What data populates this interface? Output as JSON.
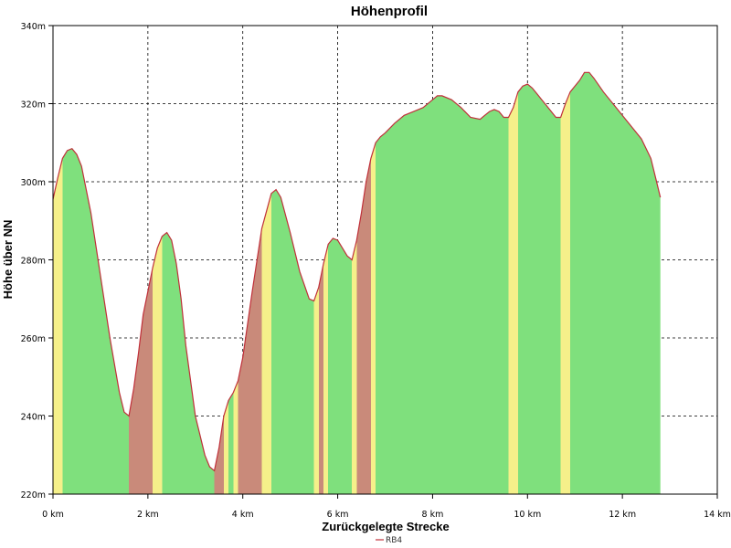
{
  "chart_data": {
    "type": "area",
    "title": "Höhenprofil",
    "xlabel": "Zurückgelegte Strecke",
    "ylabel": "Höhe über NN",
    "xlim": [
      0,
      14
    ],
    "ylim": [
      220,
      340
    ],
    "x_ticks": [
      0,
      2,
      4,
      6,
      8,
      10,
      12,
      14
    ],
    "x_tick_labels": [
      "0 km",
      "2 km",
      "4 km",
      "6 km",
      "8 km",
      "10 km",
      "12 km",
      "14 km"
    ],
    "y_ticks": [
      220,
      240,
      260,
      280,
      300,
      320,
      340
    ],
    "y_tick_labels": [
      "220m",
      "240m",
      "260m",
      "280m",
      "300m",
      "320m",
      "340m"
    ],
    "grid": true,
    "legend_position": "bottom-center",
    "series": [
      {
        "name": "RB4",
        "line_color": "#c0303a",
        "x": [
          0,
          0.1,
          0.2,
          0.3,
          0.4,
          0.5,
          0.6,
          0.8,
          1.0,
          1.2,
          1.4,
          1.5,
          1.6,
          1.7,
          1.8,
          1.9,
          2.0,
          2.1,
          2.2,
          2.3,
          2.4,
          2.5,
          2.6,
          2.7,
          2.8,
          3.0,
          3.2,
          3.3,
          3.4,
          3.5,
          3.6,
          3.7,
          3.8,
          3.9,
          4.0,
          4.2,
          4.4,
          4.6,
          4.7,
          4.8,
          5.0,
          5.2,
          5.4,
          5.5,
          5.6,
          5.7,
          5.8,
          5.9,
          6.0,
          6.2,
          6.3,
          6.4,
          6.5,
          6.6,
          6.7,
          6.8,
          6.9,
          7.0,
          7.2,
          7.4,
          7.6,
          7.8,
          8.0,
          8.1,
          8.2,
          8.4,
          8.6,
          8.8,
          9.0,
          9.1,
          9.2,
          9.3,
          9.4,
          9.5,
          9.6,
          9.7,
          9.8,
          9.9,
          10.0,
          10.1,
          10.2,
          10.3,
          10.4,
          10.5,
          10.6,
          10.7,
          10.8,
          10.9,
          11.0,
          11.1,
          11.2,
          11.3,
          11.4,
          11.6,
          11.8,
          12.0,
          12.2,
          12.4,
          12.6,
          12.7,
          12.8
        ],
        "y": [
          295.5,
          301,
          306,
          308,
          308.5,
          307,
          304,
          292,
          276,
          260,
          246,
          241,
          240,
          247,
          256,
          266,
          272,
          278,
          283,
          286,
          287,
          285,
          279,
          270,
          258,
          240,
          230,
          227,
          226,
          232,
          240,
          244,
          246,
          249,
          255,
          272,
          288,
          297,
          298,
          296,
          287,
          277,
          270,
          269.5,
          273,
          279,
          284,
          285.5,
          285,
          281,
          280,
          285,
          292,
          300,
          306,
          310,
          311.5,
          312.5,
          315,
          317,
          318,
          319,
          321,
          322,
          322,
          321,
          319,
          316.5,
          316,
          317,
          318,
          318.5,
          318,
          316.5,
          316.5,
          319,
          323,
          324.5,
          325,
          324,
          322.5,
          321,
          319.5,
          318,
          316.5,
          316.5,
          320,
          323,
          324.5,
          326,
          328,
          328,
          326.5,
          323,
          320,
          317,
          314,
          311,
          306,
          301,
          296
        ]
      }
    ],
    "shading_note": "green",
    "colors": {
      "fill_green": "#7fe07d",
      "fill_yellow": "#f5f08a",
      "fill_red": "#c98a7a",
      "curve": "#c0303a",
      "grid": "#000000"
    }
  }
}
